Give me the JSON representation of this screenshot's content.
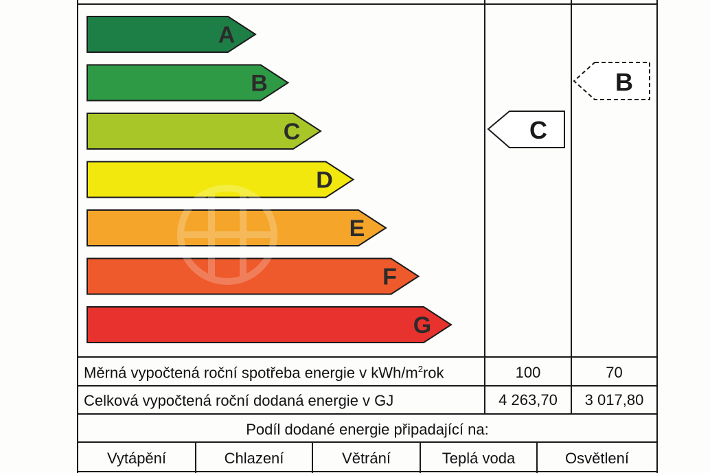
{
  "energy_bars": [
    {
      "letter": "A",
      "color": "#1e7f46"
    },
    {
      "letter": "B",
      "color": "#2f9a45"
    },
    {
      "letter": "C",
      "color": "#a9c629"
    },
    {
      "letter": "D",
      "color": "#f2e80d"
    },
    {
      "letter": "E",
      "color": "#f4a52a"
    },
    {
      "letter": "F",
      "color": "#ee5a2c"
    },
    {
      "letter": "G",
      "color": "#e8322e"
    }
  ],
  "current_class": "C",
  "proposed_class": "B",
  "rows": {
    "specific_label_before": "Měrná vypočtená roční spotřeba energie v kWh/m",
    "specific_label_sup": "2",
    "specific_label_after": "rok",
    "specific_current": "100",
    "specific_proposed": "70",
    "total_label": "Celková vypočtená roční dodaná energie v GJ",
    "total_current": "4 263,70",
    "total_proposed": "3 017,80"
  },
  "share_header": "Podíl dodané energie připadající na:",
  "share_columns": [
    "Vytápění",
    "Chlazení",
    "Větrání",
    "Teplá voda",
    "Osvětlení"
  ]
}
